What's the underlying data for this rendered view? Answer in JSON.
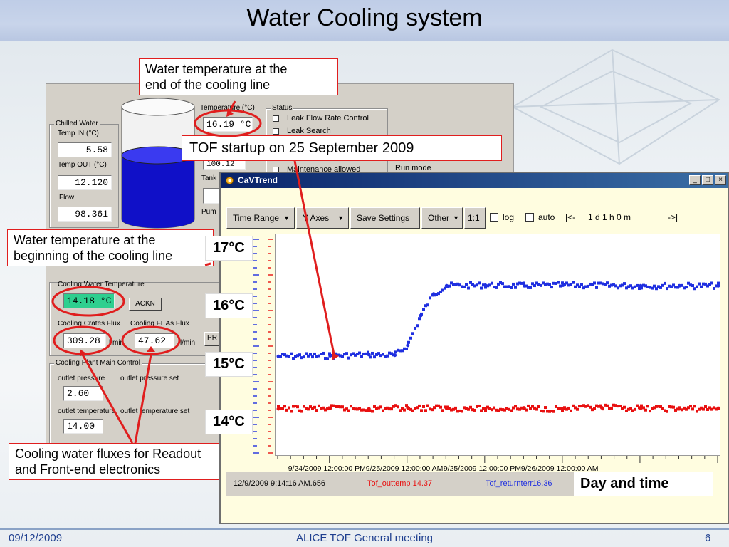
{
  "slide": {
    "title": "Water Cooling system",
    "footer_date": "09/12/2009",
    "footer_meeting": "ALICE TOF General meeting",
    "footer_page": "6"
  },
  "panel": {
    "chilled_water": {
      "group": "Chilled Water",
      "temp_in_label": "Temp IN (°C)",
      "temp_in_value": "5.58",
      "temp_out_label": "Temp OUT (°C)",
      "temp_out_value": "12.120",
      "flow_label": "Flow",
      "flow_value": "98.361"
    },
    "tank": {
      "temperature_label": "Temperature (°C)",
      "temperature_value": "16.19 °C",
      "partial_value": "100.12",
      "tank_label": "Tank",
      "pump_label": "Pum"
    },
    "status": {
      "group": "Status",
      "items": [
        "Leak Flow Rate Control",
        "Leak Search",
        "Maintenance allowed"
      ],
      "run_mode": "Run mode"
    },
    "cooling_water": {
      "group": "Cooling Water Temperature",
      "temp_value": "14.18 °C",
      "ack_label": "ACKN",
      "crates_label": "Cooling Crates Flux",
      "crates_value": "309.28",
      "feas_label": "Cooling FEAs Flux",
      "feas_value": "47.62",
      "unit_1": "l/min",
      "unit_2": "l/min",
      "pr_label": "PR"
    },
    "plant": {
      "group": "Cooling Plant Main Control",
      "outlet_pressure_label": "outlet pressure",
      "outlet_pressure_set_label": "outlet pressure set",
      "outlet_pressure_value": "2.60",
      "outlet_temp_label": "outlet temperature",
      "outlet_temp_set_label": "outlet temperature set",
      "outlet_temp_value": "14.00"
    }
  },
  "trend": {
    "window_title": "CaVTrend",
    "toolbar": {
      "time_range": "Time Range",
      "y_axes": "Y Axes",
      "save_settings": "Save Settings",
      "other": "Other",
      "ratio": "1:1",
      "log": "log",
      "auto": "auto",
      "nav_back": "|<-",
      "span": "1 d 1 h 0 m",
      "nav_fwd": "->|"
    },
    "status": {
      "timestamp": "12/9/2009 9:14:16 AM.656",
      "outtemp": "Tof_outtemp  14.37",
      "returntemp": "Tof_returnterr16.36"
    }
  },
  "annotations": {
    "end_of_line": [
      "Water temperature at the",
      "end of the cooling line"
    ],
    "tof_startup": "TOF startup on 25 September 2009",
    "beginning_of_line": [
      "Water temperature at the",
      "beginning of the cooling line"
    ],
    "fluxes": [
      "Cooling water fluxes for Readout",
      "and Front-end electronics"
    ],
    "day_time": "Day and time",
    "temp_tags": [
      "17°C",
      "16°C",
      "15°C",
      "14°C"
    ]
  },
  "chart_data": {
    "type": "line",
    "x_tick_labels": [
      "9/24/2009 12:00:00 PM",
      "9/25/2009 12:00:00 AM",
      "9/25/2009 12:00:00 PM",
      "9/26/2009 12:00:00 AM"
    ],
    "ylim": [
      13.3,
      17.4
    ],
    "series": [
      {
        "name": "Tof_returnterr",
        "color": "#1f2fe0",
        "x": [
          "9/24/2009 04:00",
          "9/24/2009 12:00",
          "9/24/2009 18:00",
          "9/24/2009 22:00",
          "9/25/2009 00:00",
          "9/25/2009 02:00",
          "9/25/2009 04:00",
          "9/25/2009 06:00",
          "9/25/2009 12:00",
          "9/25/2009 18:00",
          "9/26/2009 00:00",
          "9/26/2009 12:00",
          "9/26/2009 18:00",
          "9/27/2009 00:00"
        ],
        "values": [
          15.15,
          15.16,
          15.18,
          15.17,
          15.35,
          15.9,
          16.3,
          16.45,
          16.46,
          16.45,
          16.46,
          16.45,
          16.45,
          16.45
        ]
      },
      {
        "name": "Tof_outtemp",
        "color": "#e81010",
        "x": [
          "9/24/2009 04:00",
          "9/24/2009 12:00",
          "9/24/2009 18:00",
          "9/25/2009 00:00",
          "9/25/2009 06:00",
          "9/25/2009 12:00",
          "9/25/2009 18:00",
          "9/26/2009 00:00",
          "9/26/2009 06:00",
          "9/26/2009 12:00",
          "9/26/2009 18:00",
          "9/27/2009 00:00"
        ],
        "values": [
          14.18,
          14.19,
          14.18,
          14.2,
          14.19,
          14.18,
          14.19,
          14.18,
          14.2,
          14.19,
          14.18,
          14.19
        ]
      }
    ]
  }
}
